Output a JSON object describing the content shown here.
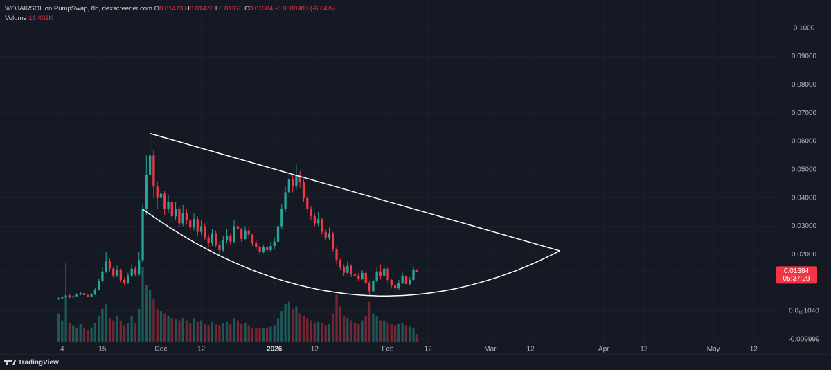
{
  "chart_data": {
    "type": "candlestick",
    "title": "WOJAK/SOL on PumpSwap, 8h, dexscreener.com",
    "ohlc_letters": [
      "O",
      "H",
      "L",
      "C"
    ],
    "last_candle_labels": [
      "0.01473",
      "0.01476",
      "0.01370",
      "0.01384"
    ],
    "change": {
      "value": -0.00089,
      "label": "-0.0008900"
    },
    "change_pct": {
      "value": -6.04,
      "label": "(-6.04%)"
    },
    "volume_title": "Volume",
    "volume_label": "16.402K",
    "countdown": "05:37:29",
    "brand": "TradingView",
    "up_color": "#26a69a",
    "down_color": "#f23645",
    "grid": true,
    "xlim": [
      "2025-10-18",
      "2026-05-18"
    ],
    "xticks": [
      {
        "value": "2025-11-04",
        "label": "4"
      },
      {
        "value": "2025-11-15",
        "label": "15"
      },
      {
        "value": "2025-12-01",
        "label": "Dec"
      },
      {
        "value": "2025-12-12",
        "label": "12"
      },
      {
        "value": "2026-01-01",
        "label": "2026"
      },
      {
        "value": "2026-01-12",
        "label": "12"
      },
      {
        "value": "2026-02-01",
        "label": "Feb"
      },
      {
        "value": "2026-02-12",
        "label": "12"
      },
      {
        "value": "2026-03-01",
        "label": "Mar"
      },
      {
        "value": "2026-03-12",
        "label": "12"
      },
      {
        "value": "2026-04-01",
        "label": "Apr"
      },
      {
        "value": "2026-04-12",
        "label": "12"
      },
      {
        "value": "2026-05-01",
        "label": "May"
      },
      {
        "value": "2026-05-12",
        "label": "12"
      }
    ],
    "ylim": [
      -0.0118,
      0.11
    ],
    "yticks": [
      {
        "value": 0.1,
        "label": "0.1000"
      },
      {
        "value": 0.09,
        "label": "0.09000"
      },
      {
        "value": 0.08,
        "label": "0.08000"
      },
      {
        "value": 0.07,
        "label": "0.07000"
      },
      {
        "value": 0.06,
        "label": "0.06000"
      },
      {
        "value": 0.05,
        "label": "0.05000"
      },
      {
        "value": 0.04,
        "label": "0.04000"
      },
      {
        "value": 0.03,
        "label": "0.03000"
      },
      {
        "value": 0.02,
        "label": "0.02000"
      },
      {
        "value": 1.04e-11,
        "label": "0.0₁₀1040"
      },
      -0.009999
    ],
    "x": [
      "2025-11-03",
      "2025-11-04",
      "2025-11-05",
      "2025-11-06",
      "2025-11-07",
      "2025-11-08",
      "2025-11-09",
      "2025-11-10",
      "2025-11-11",
      "2025-11-12",
      "2025-11-13",
      "2025-11-14",
      "2025-11-15",
      "2025-11-16",
      "2025-11-17",
      "2025-11-18",
      "2025-11-19",
      "2025-11-20",
      "2025-11-21",
      "2025-11-22",
      "2025-11-23",
      "2025-11-24",
      "2025-11-25",
      "2025-11-26",
      "2025-11-27",
      "2025-11-28",
      "2025-11-29",
      "2025-11-30",
      "2025-12-01",
      "2025-12-02",
      "2025-12-03",
      "2025-12-04",
      "2025-12-05",
      "2025-12-06",
      "2025-12-07",
      "2025-12-08",
      "2025-12-09",
      "2025-12-10",
      "2025-12-11",
      "2025-12-12",
      "2025-12-13",
      "2025-12-14",
      "2025-12-15",
      "2025-12-16",
      "2025-12-17",
      "2025-12-18",
      "2025-12-19",
      "2025-12-20",
      "2025-12-21",
      "2025-12-22",
      "2025-12-23",
      "2025-12-24",
      "2025-12-25",
      "2025-12-26",
      "2025-12-27",
      "2025-12-28",
      "2025-12-29",
      "2025-12-30",
      "2025-12-31",
      "2026-01-01",
      "2026-01-02",
      "2026-01-03",
      "2026-01-04",
      "2026-01-05",
      "2026-01-06",
      "2026-01-07",
      "2026-01-08",
      "2026-01-09",
      "2026-01-10",
      "2026-01-11",
      "2026-01-12",
      "2026-01-13",
      "2026-01-14",
      "2026-01-15",
      "2026-01-16",
      "2026-01-17",
      "2026-01-18",
      "2026-01-19",
      "2026-01-20",
      "2026-01-21",
      "2026-01-22",
      "2026-01-23",
      "2026-01-24",
      "2026-01-25",
      "2026-01-26",
      "2026-01-27",
      "2026-01-28",
      "2026-01-29",
      "2026-01-30",
      "2026-01-31",
      "2026-02-01",
      "2026-02-02",
      "2026-02-03",
      "2026-02-04",
      "2026-02-05",
      "2026-02-06",
      "2026-02-07",
      "2026-02-08",
      "2026-02-09"
    ],
    "open": [
      0.0042,
      0.0045,
      0.005,
      0.0055,
      0.0048,
      0.0052,
      0.0058,
      0.0063,
      0.0056,
      0.0051,
      0.0059,
      0.0075,
      0.0105,
      0.014,
      0.0175,
      0.015,
      0.0125,
      0.0145,
      0.011,
      0.01,
      0.0125,
      0.015,
      0.013,
      0.018,
      0.036,
      0.048,
      0.055,
      0.044,
      0.04,
      0.0415,
      0.036,
      0.0385,
      0.0335,
      0.036,
      0.031,
      0.0345,
      0.032,
      0.0295,
      0.0325,
      0.028,
      0.03,
      0.026,
      0.024,
      0.0275,
      0.0235,
      0.0215,
      0.025,
      0.0265,
      0.0245,
      0.03,
      0.029,
      0.0255,
      0.0285,
      0.027,
      0.024,
      0.0225,
      0.021,
      0.0225,
      0.0215,
      0.023,
      0.0245,
      0.03,
      0.036,
      0.042,
      0.0465,
      0.044,
      0.048,
      0.0455,
      0.04,
      0.036,
      0.0335,
      0.031,
      0.0325,
      0.028,
      0.026,
      0.0275,
      0.022,
      0.018,
      0.0155,
      0.0135,
      0.016,
      0.013,
      0.0125,
      0.0115,
      0.0135,
      0.01,
      0.007,
      0.0105,
      0.014,
      0.0125,
      0.015,
      0.011,
      0.009,
      0.008,
      0.01,
      0.0125,
      0.0095,
      0.011,
      0.01473
    ],
    "high": [
      0.0048,
      0.0053,
      0.017,
      0.0059,
      0.0056,
      0.0062,
      0.0068,
      0.0066,
      0.0059,
      0.0064,
      0.0082,
      0.0115,
      0.0155,
      0.021,
      0.0185,
      0.0158,
      0.016,
      0.015,
      0.0118,
      0.0135,
      0.0165,
      0.0158,
      0.021,
      0.038,
      0.055,
      0.0627,
      0.057,
      0.046,
      0.045,
      0.0425,
      0.041,
      0.0395,
      0.0385,
      0.037,
      0.0375,
      0.036,
      0.033,
      0.0345,
      0.0335,
      0.032,
      0.031,
      0.027,
      0.029,
      0.0285,
      0.0245,
      0.0265,
      0.029,
      0.0275,
      0.032,
      0.0315,
      0.0295,
      0.03,
      0.0295,
      0.0275,
      0.025,
      0.0235,
      0.0235,
      0.023,
      0.0245,
      0.026,
      0.0315,
      0.038,
      0.044,
      0.0485,
      0.048,
      0.052,
      0.0495,
      0.0465,
      0.041,
      0.037,
      0.0345,
      0.035,
      0.033,
      0.029,
      0.0295,
      0.028,
      0.0225,
      0.0185,
      0.0165,
      0.0175,
      0.0165,
      0.014,
      0.0135,
      0.0145,
      0.014,
      0.0105,
      0.0115,
      0.0155,
      0.0165,
      0.016,
      0.0155,
      0.0115,
      0.0095,
      0.011,
      0.0135,
      0.013,
      0.012,
      0.0158,
      0.01476
    ],
    "low": [
      0.0039,
      0.0043,
      0.0047,
      0.0045,
      0.0045,
      0.005,
      0.0055,
      0.0052,
      0.0048,
      0.0049,
      0.0056,
      0.0072,
      0.01,
      0.0135,
      0.014,
      0.0118,
      0.012,
      0.0102,
      0.0092,
      0.0096,
      0.012,
      0.0122,
      0.0125,
      0.017,
      0.034,
      0.045,
      0.04,
      0.036,
      0.037,
      0.034,
      0.0345,
      0.0315,
      0.032,
      0.0295,
      0.03,
      0.0305,
      0.0275,
      0.0285,
      0.0265,
      0.027,
      0.025,
      0.0225,
      0.023,
      0.0225,
      0.02,
      0.021,
      0.024,
      0.0235,
      0.024,
      0.0275,
      0.0245,
      0.025,
      0.0255,
      0.023,
      0.0215,
      0.02,
      0.0205,
      0.0205,
      0.021,
      0.022,
      0.024,
      0.029,
      0.035,
      0.0405,
      0.042,
      0.043,
      0.0435,
      0.0385,
      0.0345,
      0.032,
      0.03,
      0.03,
      0.027,
      0.025,
      0.025,
      0.021,
      0.0165,
      0.0145,
      0.0125,
      0.013,
      0.012,
      0.0115,
      0.0105,
      0.011,
      0.009,
      0.0055,
      0.0065,
      0.01,
      0.0115,
      0.012,
      0.01,
      0.008,
      0.0065,
      0.0075,
      0.0095,
      0.0085,
      0.009,
      0.0105,
      0.0137
    ],
    "close": [
      0.0045,
      0.005,
      0.0055,
      0.0048,
      0.0052,
      0.0058,
      0.0063,
      0.0056,
      0.0051,
      0.0059,
      0.0075,
      0.0105,
      0.014,
      0.0175,
      0.015,
      0.0125,
      0.0145,
      0.011,
      0.01,
      0.0125,
      0.015,
      0.013,
      0.018,
      0.036,
      0.048,
      0.055,
      0.044,
      0.04,
      0.0415,
      0.036,
      0.0385,
      0.0335,
      0.036,
      0.031,
      0.0345,
      0.032,
      0.0295,
      0.0325,
      0.028,
      0.03,
      0.026,
      0.024,
      0.0275,
      0.0235,
      0.0215,
      0.025,
      0.0265,
      0.0245,
      0.03,
      0.029,
      0.0255,
      0.0285,
      0.027,
      0.024,
      0.0225,
      0.021,
      0.0225,
      0.0215,
      0.023,
      0.0245,
      0.03,
      0.036,
      0.042,
      0.0465,
      0.044,
      0.048,
      0.0455,
      0.04,
      0.036,
      0.0335,
      0.031,
      0.0325,
      0.028,
      0.026,
      0.0275,
      0.022,
      0.018,
      0.0155,
      0.0135,
      0.016,
      0.013,
      0.0125,
      0.0115,
      0.0135,
      0.01,
      0.007,
      0.0105,
      0.014,
      0.0125,
      0.015,
      0.011,
      0.009,
      0.008,
      0.01,
      0.0125,
      0.0095,
      0.011,
      0.01473,
      0.01384
    ],
    "volume": [
      60000,
      45000,
      95000,
      40000,
      35000,
      30000,
      38000,
      30000,
      25000,
      30000,
      40000,
      55000,
      70000,
      80000,
      50000,
      45000,
      55000,
      45000,
      35000,
      40000,
      55000,
      40000,
      70000,
      160000,
      120000,
      110000,
      90000,
      70000,
      65000,
      60000,
      55000,
      50000,
      48000,
      45000,
      50000,
      45000,
      40000,
      50000,
      42000,
      45000,
      38000,
      35000,
      42000,
      38000,
      35000,
      40000,
      42000,
      38000,
      50000,
      45000,
      38000,
      40000,
      35000,
      30000,
      30000,
      28000,
      28000,
      30000,
      32000,
      35000,
      50000,
      65000,
      80000,
      85000,
      70000,
      75000,
      60000,
      55000,
      50000,
      45000,
      40000,
      42000,
      40000,
      35000,
      38000,
      60000,
      100000,
      75000,
      55000,
      50000,
      45000,
      40000,
      38000,
      45000,
      55000,
      85000,
      60000,
      55000,
      45000,
      45000,
      40000,
      38000,
      35000,
      38000,
      40000,
      35000,
      32000,
      30000,
      16402
    ],
    "drawings": {
      "color": "#ffffff",
      "trendline": {
        "x": [
          "2025-11-28",
          "2026-03-20"
        ],
        "y": [
          0.0628,
          0.0213
        ]
      },
      "arc": {
        "x": [
          "2025-11-26",
          "2026-01-26",
          "2026-03-20"
        ],
        "y": [
          0.036,
          0.0055,
          0.0213
        ]
      }
    }
  }
}
